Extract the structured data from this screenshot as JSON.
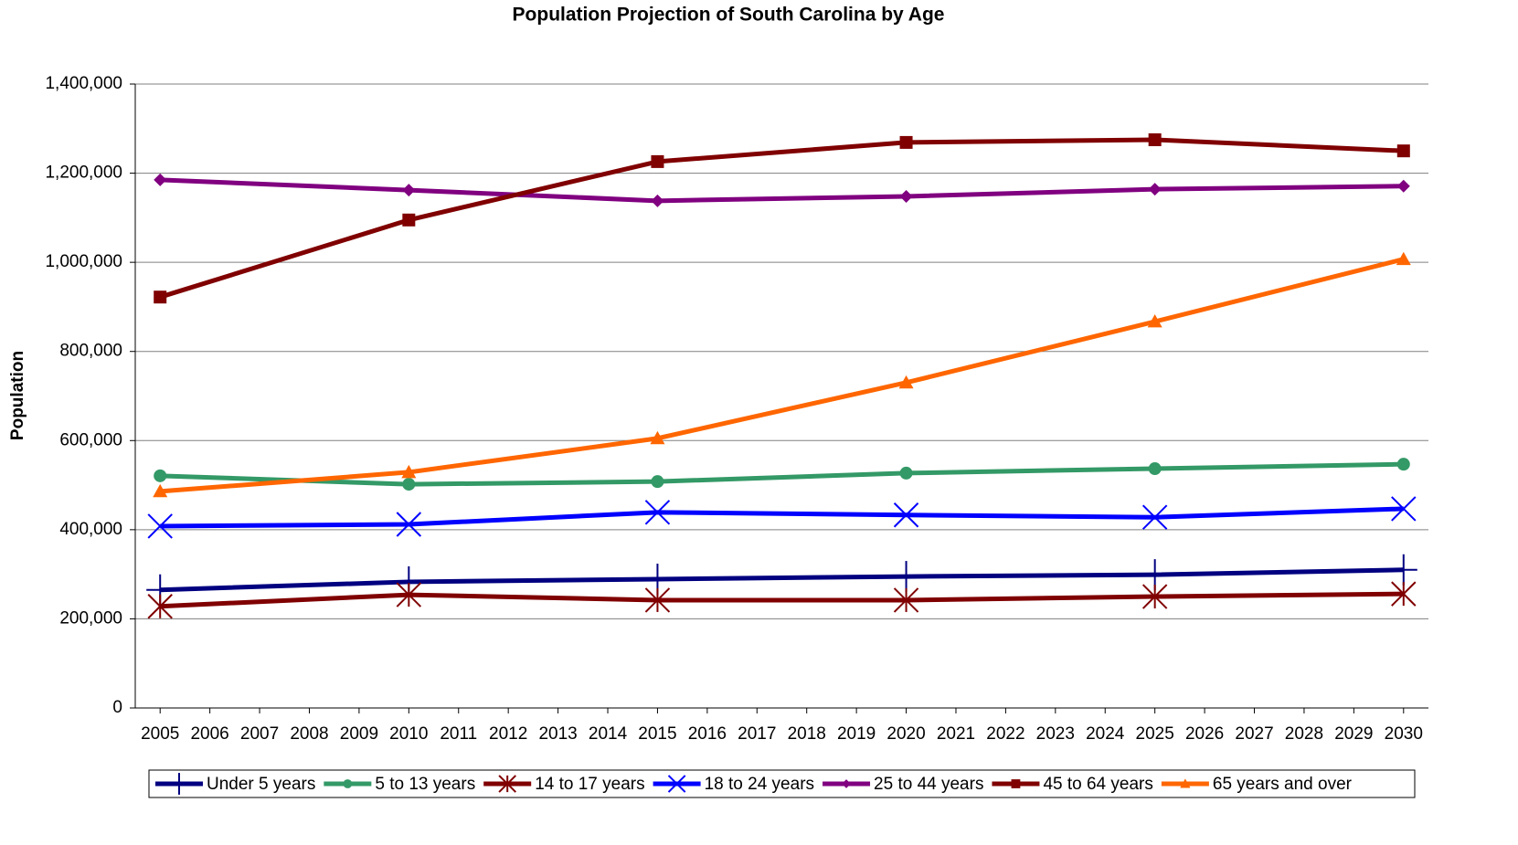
{
  "chart_data": {
    "type": "line",
    "title": "Population Projection of South Carolina by Age",
    "y_label": "Population",
    "x": [
      2005,
      2010,
      2015,
      2020,
      2025,
      2030
    ],
    "xlim": [
      2004.5,
      2030.5
    ],
    "xticks": [
      2005,
      2006,
      2007,
      2008,
      2009,
      2010,
      2011,
      2012,
      2013,
      2014,
      2015,
      2016,
      2017,
      2018,
      2019,
      2020,
      2021,
      2022,
      2023,
      2024,
      2025,
      2026,
      2027,
      2028,
      2029,
      2030
    ],
    "ylim": [
      0,
      1400000
    ],
    "yticks": [
      0,
      {
        "value": 200000,
        "label": "200,000"
      },
      {
        "value": 400000,
        "label": "400,000"
      },
      {
        "value": 600000,
        "label": "600,000"
      },
      {
        "value": 800000,
        "label": "800,000"
      },
      {
        "value": 1000000,
        "label": "1,000,000"
      },
      {
        "value": 1200000,
        "label": "1,200,000"
      },
      {
        "value": 1400000,
        "label": "1,400,000"
      }
    ],
    "grid": true,
    "legend": "bottom",
    "series": [
      {
        "name": "Under 5 years",
        "color": "#000080",
        "marker": "plus",
        "values": [
          265000,
          283000,
          289000,
          295000,
          299000,
          310000
        ]
      },
      {
        "name": "5 to 13 years",
        "color": "#339966",
        "marker": "circle",
        "values": [
          521000,
          502000,
          508000,
          527000,
          537000,
          547000
        ]
      },
      {
        "name": "14 to 17 years",
        "color": "#800000",
        "marker": "asterisk",
        "values": [
          228000,
          254000,
          242000,
          242000,
          250000,
          256000
        ]
      },
      {
        "name": "18 to 24 years",
        "color": "#0000ff",
        "marker": "x",
        "values": [
          408000,
          412000,
          439000,
          433000,
          428000,
          447000
        ]
      },
      {
        "name": "25 to 44 years",
        "color": "#800080",
        "marker": "diamond",
        "values": [
          1185000,
          1162000,
          1138000,
          1148000,
          1164000,
          1171000
        ]
      },
      {
        "name": "45 to 64 years",
        "color": "#800000",
        "marker": "square",
        "values": [
          922000,
          1095000,
          1226000,
          1269000,
          1275000,
          1250000
        ]
      },
      {
        "name": "65 years and over",
        "color": "#ff6600",
        "marker": "triangle",
        "values": [
          486000,
          529000,
          605000,
          730000,
          867000,
          1007000
        ]
      }
    ]
  }
}
